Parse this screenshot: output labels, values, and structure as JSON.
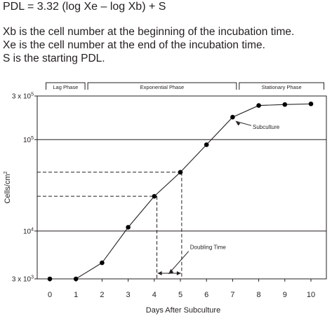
{
  "formula": "PDL = 3.32 (log Xe – log Xb) + S",
  "definitions": [
    "Xb is the cell number at the beginning of the incubation time.",
    "Xe is the cell number at the end of the incubation time.",
    "S is the starting PDL."
  ],
  "chart_data": {
    "type": "line",
    "xlabel": "Days After Subculture",
    "ylabel_base": "Cells/cm",
    "ylabel_sup": "2",
    "yscale": "log",
    "xlim": [
      -0.5,
      10.6
    ],
    "ylim": [
      3000,
      300000
    ],
    "x_ticks": [
      0,
      1,
      2,
      3,
      4,
      5,
      6,
      7,
      8,
      9,
      10
    ],
    "y_ticks": [
      {
        "value": 3000,
        "base": "3 x 10",
        "exp": "3"
      },
      {
        "value": 10000,
        "base": "10",
        "exp": "4"
      },
      {
        "value": 100000,
        "base": "10",
        "exp": "5"
      },
      {
        "value": 300000,
        "base": "3 x 10",
        "exp": "5"
      }
    ],
    "series": [
      {
        "x": [
          0,
          1,
          2,
          3,
          4,
          5,
          6,
          7,
          8,
          9,
          10
        ],
        "y": [
          3000,
          3000,
          4500,
          11000,
          24000,
          44000,
          88000,
          176000,
          236000,
          242000,
          246000
        ]
      }
    ],
    "phases": [
      {
        "label": "Lag Phase",
        "from": -0.2,
        "to": 1.4
      },
      {
        "label": "Exponential Phase",
        "from": 1.4,
        "to": 7.2
      },
      {
        "label": "Stationary Phase",
        "from": 7.2,
        "to": 10.55
      }
    ],
    "reference_lines": {
      "x1": 4.1,
      "x2": 5.05,
      "y1": 24000,
      "y2": 44000
    },
    "annotations": [
      {
        "text": "Subculture",
        "x": 7.5,
        "y": 140000
      },
      {
        "text": "Doubling Time",
        "x": 5.1,
        "y": 5500
      }
    ],
    "grid": "horizontal-at-decades",
    "legend": "none"
  }
}
